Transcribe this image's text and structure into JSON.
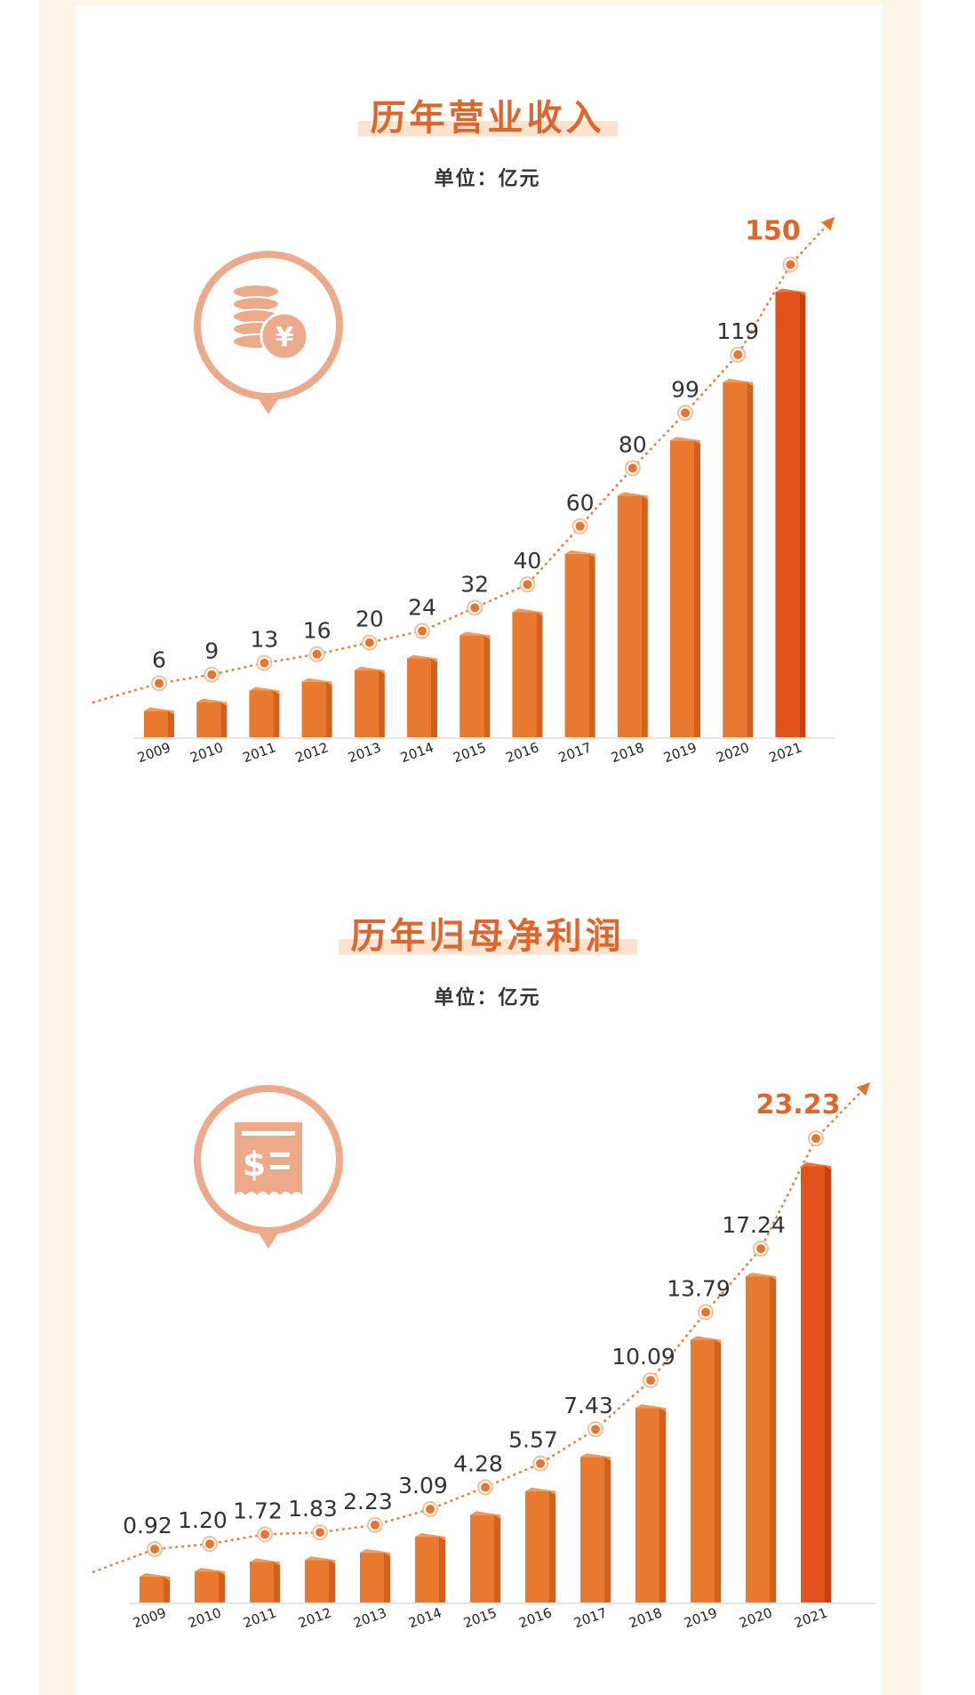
{
  "colors": {
    "accent": "#e0652a",
    "bar": "#e8772e",
    "bar_highlight": "#e2521a",
    "icon": "#ecaa8a",
    "background": "#fdf5e8"
  },
  "chart_data": [
    {
      "type": "bar",
      "title": "历年营业收入",
      "subtitle": "单位：亿元",
      "icon": "coins-yen-icon",
      "categories": [
        "2009",
        "2010",
        "2011",
        "2012",
        "2013",
        "2014",
        "2015",
        "2016",
        "2017",
        "2018",
        "2019",
        "2020",
        "2021"
      ],
      "values": [
        6,
        9,
        13,
        16,
        20,
        24,
        32,
        40,
        60,
        80,
        99,
        119,
        150
      ],
      "labels": [
        "6",
        "9",
        "13",
        "16",
        "20",
        "24",
        "32",
        "40",
        "60",
        "80",
        "99",
        "119",
        "150"
      ],
      "trend_line": "dotted with arrow",
      "highlight": "2021"
    },
    {
      "type": "bar",
      "title": "历年归母净利润",
      "subtitle": "单位：亿元",
      "icon": "receipt-dollar-icon",
      "categories": [
        "2009",
        "2010",
        "2011",
        "2012",
        "2013",
        "2014",
        "2015",
        "2016",
        "2017",
        "2018",
        "2019",
        "2020",
        "2021"
      ],
      "values": [
        0.92,
        1.2,
        1.72,
        1.83,
        2.23,
        3.09,
        4.28,
        5.57,
        7.43,
        10.09,
        13.79,
        17.24,
        23.23
      ],
      "labels": [
        "0.92",
        "1.20",
        "1.72",
        "1.83",
        "2.23",
        "3.09",
        "4.28",
        "5.57",
        "7.43",
        "10.09",
        "13.79",
        "17.24",
        "23.23"
      ],
      "trend_line": "dotted with arrow",
      "highlight": "2021"
    }
  ]
}
